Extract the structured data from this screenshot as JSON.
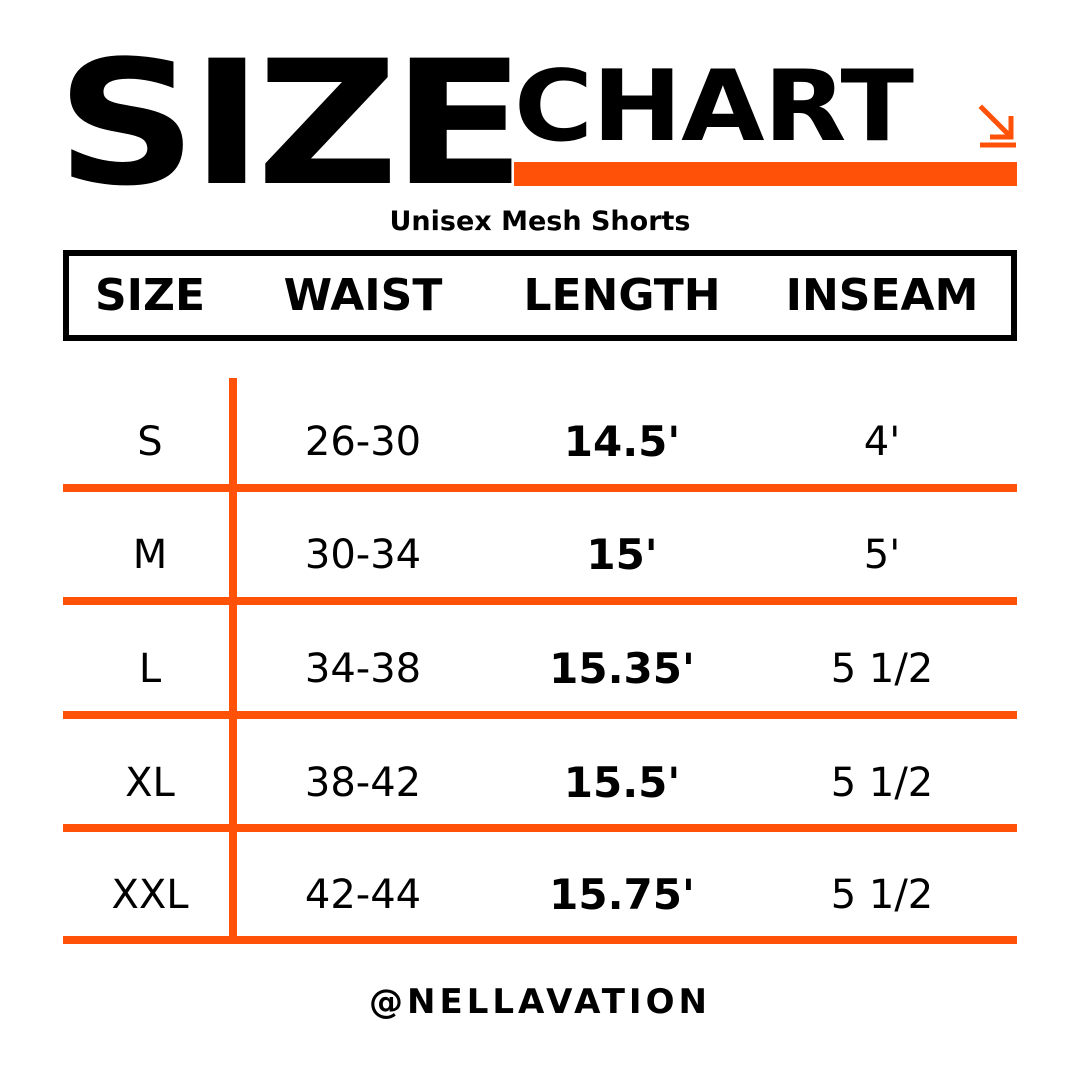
{
  "title": {
    "word1": "SIZE",
    "word2": "CHART"
  },
  "subtitle": "Unisex Mesh Shorts",
  "colors": {
    "accent": "#FF5208",
    "text": "#000000",
    "background": "#FFFFFF"
  },
  "icons": {
    "title_arrow": "arrow-down-right-icon"
  },
  "chart_data": {
    "type": "table",
    "columns": [
      "SIZE",
      "WAIST",
      "LENGTH",
      "INSEAM"
    ],
    "rows": [
      [
        "S",
        "26-30",
        "14.5'",
        "4'"
      ],
      [
        "M",
        "30-34",
        "15'",
        "5'"
      ],
      [
        "L",
        "34-38",
        "15.35'",
        "5 1/2"
      ],
      [
        "XL",
        "38-42",
        "15.5'",
        "5 1/2"
      ],
      [
        "XXL",
        "42-44",
        "15.75'",
        "5 1/2"
      ]
    ]
  },
  "footer": {
    "handle": "@NELLAVATION"
  }
}
